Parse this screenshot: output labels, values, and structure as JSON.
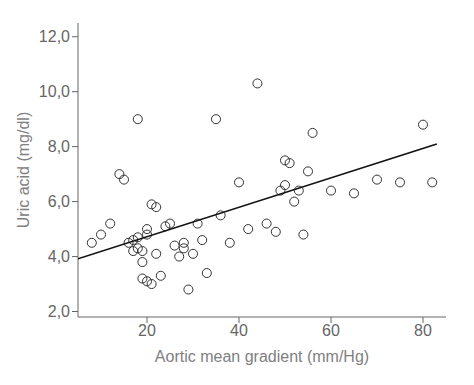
{
  "chart_data": {
    "type": "scatter",
    "xlabel": "Aortic mean gradient (mm/Hg)",
    "ylabel": "Uric acid (mg/dl)",
    "x": [
      8,
      10,
      12,
      14,
      15,
      16,
      17,
      17,
      18,
      18,
      18,
      19,
      19,
      19,
      20,
      20,
      20,
      21,
      21,
      22,
      22,
      23,
      24,
      25,
      26,
      27,
      28,
      28,
      29,
      30,
      31,
      32,
      33,
      35,
      36,
      38,
      40,
      42,
      44,
      46,
      48,
      49,
      50,
      50,
      51,
      52,
      53,
      54,
      55,
      56,
      60,
      65,
      70,
      75,
      80,
      82
    ],
    "values": [
      4.5,
      4.8,
      5.2,
      7.0,
      6.8,
      4.5,
      4.6,
      4.2,
      4.7,
      4.3,
      9.0,
      4.2,
      3.8,
      3.2,
      5.0,
      4.8,
      3.1,
      5.9,
      3.0,
      4.1,
      5.8,
      3.3,
      5.1,
      5.2,
      4.4,
      4.0,
      4.3,
      4.5,
      2.8,
      4.1,
      5.2,
      4.6,
      3.4,
      9.0,
      5.5,
      4.5,
      6.7,
      5.0,
      10.3,
      5.2,
      4.9,
      6.4,
      6.6,
      7.5,
      7.4,
      6.0,
      6.4,
      4.8,
      7.1,
      8.5,
      6.4,
      6.3,
      6.8,
      6.7,
      8.8,
      6.7
    ],
    "color": "#333333",
    "marker": "circle",
    "line": {
      "type": "line",
      "color": "#111111",
      "x": [
        5,
        83
      ],
      "values": [
        3.92,
        8.1
      ]
    },
    "xlim": [
      5,
      85
    ],
    "ylim": [
      1.8,
      12.5
    ],
    "xticks": [
      20,
      40,
      60,
      80
    ],
    "yticks": [
      {
        "value": 2.0,
        "label": "2,0"
      },
      {
        "value": 4.0,
        "label": "4,0"
      },
      {
        "value": 6.0,
        "label": "6,0"
      },
      {
        "value": 8.0,
        "label": "8,0"
      },
      {
        "value": 10.0,
        "label": "10,0"
      },
      {
        "value": 12.0,
        "label": "12,0"
      }
    ],
    "grid": false
  }
}
